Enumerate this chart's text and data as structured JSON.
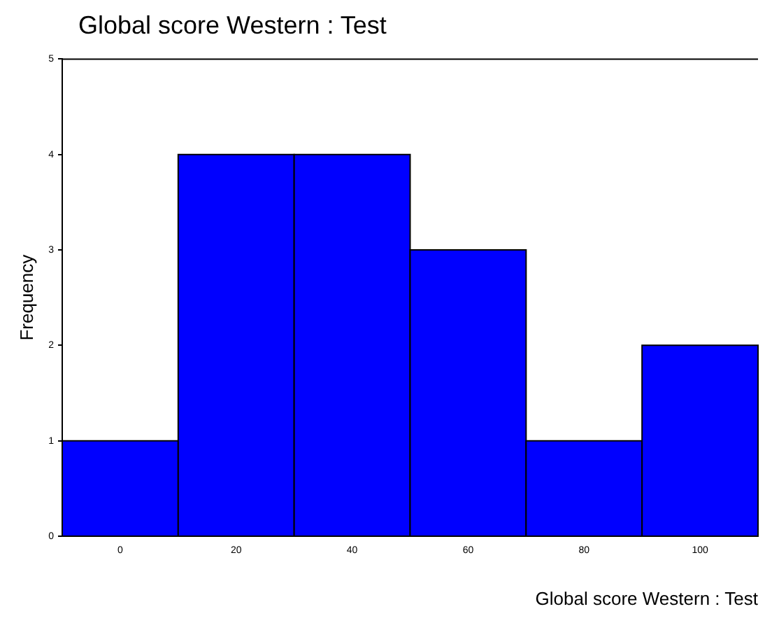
{
  "chart_data": {
    "type": "histogram",
    "title": "Global score Western : Test",
    "xlabel": "Global score Western : Test",
    "ylabel": "Frequency",
    "bins": [
      -10,
      10,
      30,
      50,
      70,
      90,
      110
    ],
    "values": [
      1,
      4,
      4,
      3,
      1,
      2
    ],
    "color": "#0000ff",
    "xlim": [
      -10,
      110
    ],
    "xticks": [
      0,
      20,
      40,
      60,
      80,
      100
    ],
    "ylim": [
      0,
      5
    ],
    "yticks": [
      0,
      1,
      2,
      3,
      4,
      5
    ],
    "grid": false,
    "legend": false
  }
}
